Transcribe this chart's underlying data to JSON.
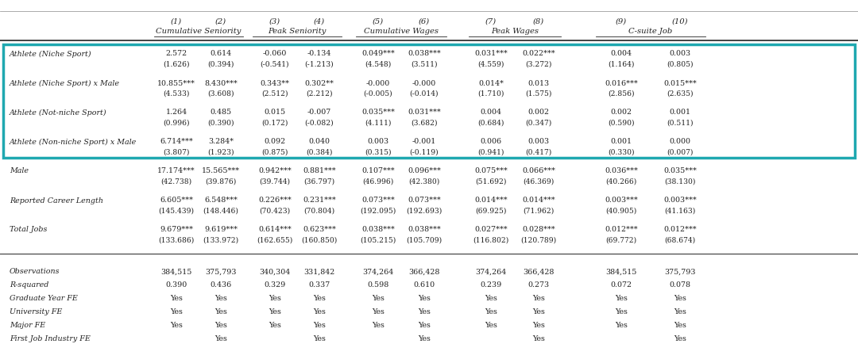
{
  "col_nums": [
    "(1)",
    "(2)",
    "(3)",
    "(4)",
    "(5)",
    "(6)",
    "(7)",
    "(8)",
    "(9)",
    "(10)"
  ],
  "col_groups": [
    {
      "label": "Cumulative Seniority",
      "col_indices": [
        0,
        1
      ]
    },
    {
      "label": "Peak Seniority",
      "col_indices": [
        2,
        3
      ]
    },
    {
      "label": "Cumulative Wages",
      "col_indices": [
        4,
        5
      ]
    },
    {
      "label": "Peak Wages",
      "col_indices": [
        6,
        7
      ]
    },
    {
      "label": "C-suite Job",
      "col_indices": [
        8,
        9
      ]
    }
  ],
  "rows": [
    {
      "label": "Athlete (Niche Sport)",
      "values": [
        "2.572",
        "0.614",
        "-0.060",
        "-0.134",
        "0.049***",
        "0.038***",
        "0.031***",
        "0.022***",
        "0.004",
        "0.003"
      ],
      "se": [
        "(1.626)",
        "(0.394)",
        "(-0.541)",
        "(-1.213)",
        "(4.548)",
        "(3.511)",
        "(4.559)",
        "(3.272)",
        "(1.164)",
        "(0.805)"
      ],
      "in_box": true
    },
    {
      "label": "Athlete (Niche Sport) x Male",
      "values": [
        "10.855***",
        "8.430***",
        "0.343**",
        "0.302**",
        "-0.000",
        "-0.000",
        "0.014*",
        "0.013",
        "0.016***",
        "0.015***"
      ],
      "se": [
        "(4.533)",
        "(3.608)",
        "(2.512)",
        "(2.212)",
        "(-0.005)",
        "(-0.014)",
        "(1.710)",
        "(1.575)",
        "(2.856)",
        "(2.635)"
      ],
      "in_box": true
    },
    {
      "label": "Athlete (Not-niche Sport)",
      "values": [
        "1.264",
        "0.485",
        "0.015",
        "-0.007",
        "0.035***",
        "0.031***",
        "0.004",
        "0.002",
        "0.002",
        "0.001"
      ],
      "se": [
        "(0.996)",
        "(0.390)",
        "(0.172)",
        "(-0.082)",
        "(4.111)",
        "(3.682)",
        "(0.684)",
        "(0.347)",
        "(0.590)",
        "(0.511)"
      ],
      "in_box": true
    },
    {
      "label": "Athlete (Non-niche Sport) x Male",
      "values": [
        "6.714***",
        "3.284*",
        "0.092",
        "0.040",
        "0.003",
        "-0.001",
        "0.006",
        "0.003",
        "0.001",
        "0.000"
      ],
      "se": [
        "(3.807)",
        "(1.923)",
        "(0.875)",
        "(0.384)",
        "(0.315)",
        "(-0.119)",
        "(0.941)",
        "(0.417)",
        "(0.330)",
        "(0.007)"
      ],
      "in_box": true
    },
    {
      "label": "Male",
      "values": [
        "17.174***",
        "15.565***",
        "0.942***",
        "0.881***",
        "0.107***",
        "0.096***",
        "0.075***",
        "0.066***",
        "0.036***",
        "0.035***"
      ],
      "se": [
        "(42.738)",
        "(39.876)",
        "(39.744)",
        "(36.797)",
        "(46.996)",
        "(42.380)",
        "(51.692)",
        "(46.369)",
        "(40.266)",
        "(38.130)"
      ],
      "in_box": false
    },
    {
      "label": "Reported Career Length",
      "values": [
        "6.605***",
        "6.548***",
        "0.226***",
        "0.231***",
        "0.073***",
        "0.073***",
        "0.014***",
        "0.014***",
        "0.003***",
        "0.003***"
      ],
      "se": [
        "(145.439)",
        "(148.446)",
        "(70.423)",
        "(70.804)",
        "(192.095)",
        "(192.693)",
        "(69.925)",
        "(71.962)",
        "(40.905)",
        "(41.163)"
      ],
      "in_box": false
    },
    {
      "label": "Total Jobs",
      "values": [
        "9.679***",
        "9.619***",
        "0.614***",
        "0.623***",
        "0.038***",
        "0.038***",
        "0.027***",
        "0.028***",
        "0.012***",
        "0.012***"
      ],
      "se": [
        "(133.686)",
        "(133.972)",
        "(162.655)",
        "(160.850)",
        "(105.215)",
        "(105.709)",
        "(116.802)",
        "(120.789)",
        "(69.772)",
        "(68.674)"
      ],
      "in_box": false
    }
  ],
  "stats_rows": [
    {
      "label": "Observations",
      "values": [
        "384,515",
        "375,793",
        "340,304",
        "331,842",
        "374,264",
        "366,428",
        "374,264",
        "366,428",
        "384,515",
        "375,793"
      ]
    },
    {
      "label": "R-squared",
      "values": [
        "0.390",
        "0.436",
        "0.329",
        "0.337",
        "0.598",
        "0.610",
        "0.239",
        "0.273",
        "0.072",
        "0.078"
      ]
    },
    {
      "label": "Graduate Year FE",
      "values": [
        "Yes",
        "Yes",
        "Yes",
        "Yes",
        "Yes",
        "Yes",
        "Yes",
        "Yes",
        "Yes",
        "Yes"
      ]
    },
    {
      "label": "University FE",
      "values": [
        "Yes",
        "Yes",
        "Yes",
        "Yes",
        "Yes",
        "Yes",
        "Yes",
        "Yes",
        "Yes",
        "Yes"
      ]
    },
    {
      "label": "Major FE",
      "values": [
        "Yes",
        "Yes",
        "Yes",
        "Yes",
        "Yes",
        "Yes",
        "Yes",
        "Yes",
        "Yes",
        "Yes"
      ]
    },
    {
      "label": "First Job Industry FE",
      "values": [
        "",
        "Yes",
        "",
        "Yes",
        "",
        "Yes",
        "",
        "Yes",
        "",
        "Yes"
      ]
    }
  ],
  "box_color": "#1fa8b0",
  "header_line_color": "#222222",
  "text_color": "#222222",
  "bg_color": "#ffffff",
  "font_size": 6.8,
  "header_font_size": 7.2,
  "label_font_size": 6.8
}
